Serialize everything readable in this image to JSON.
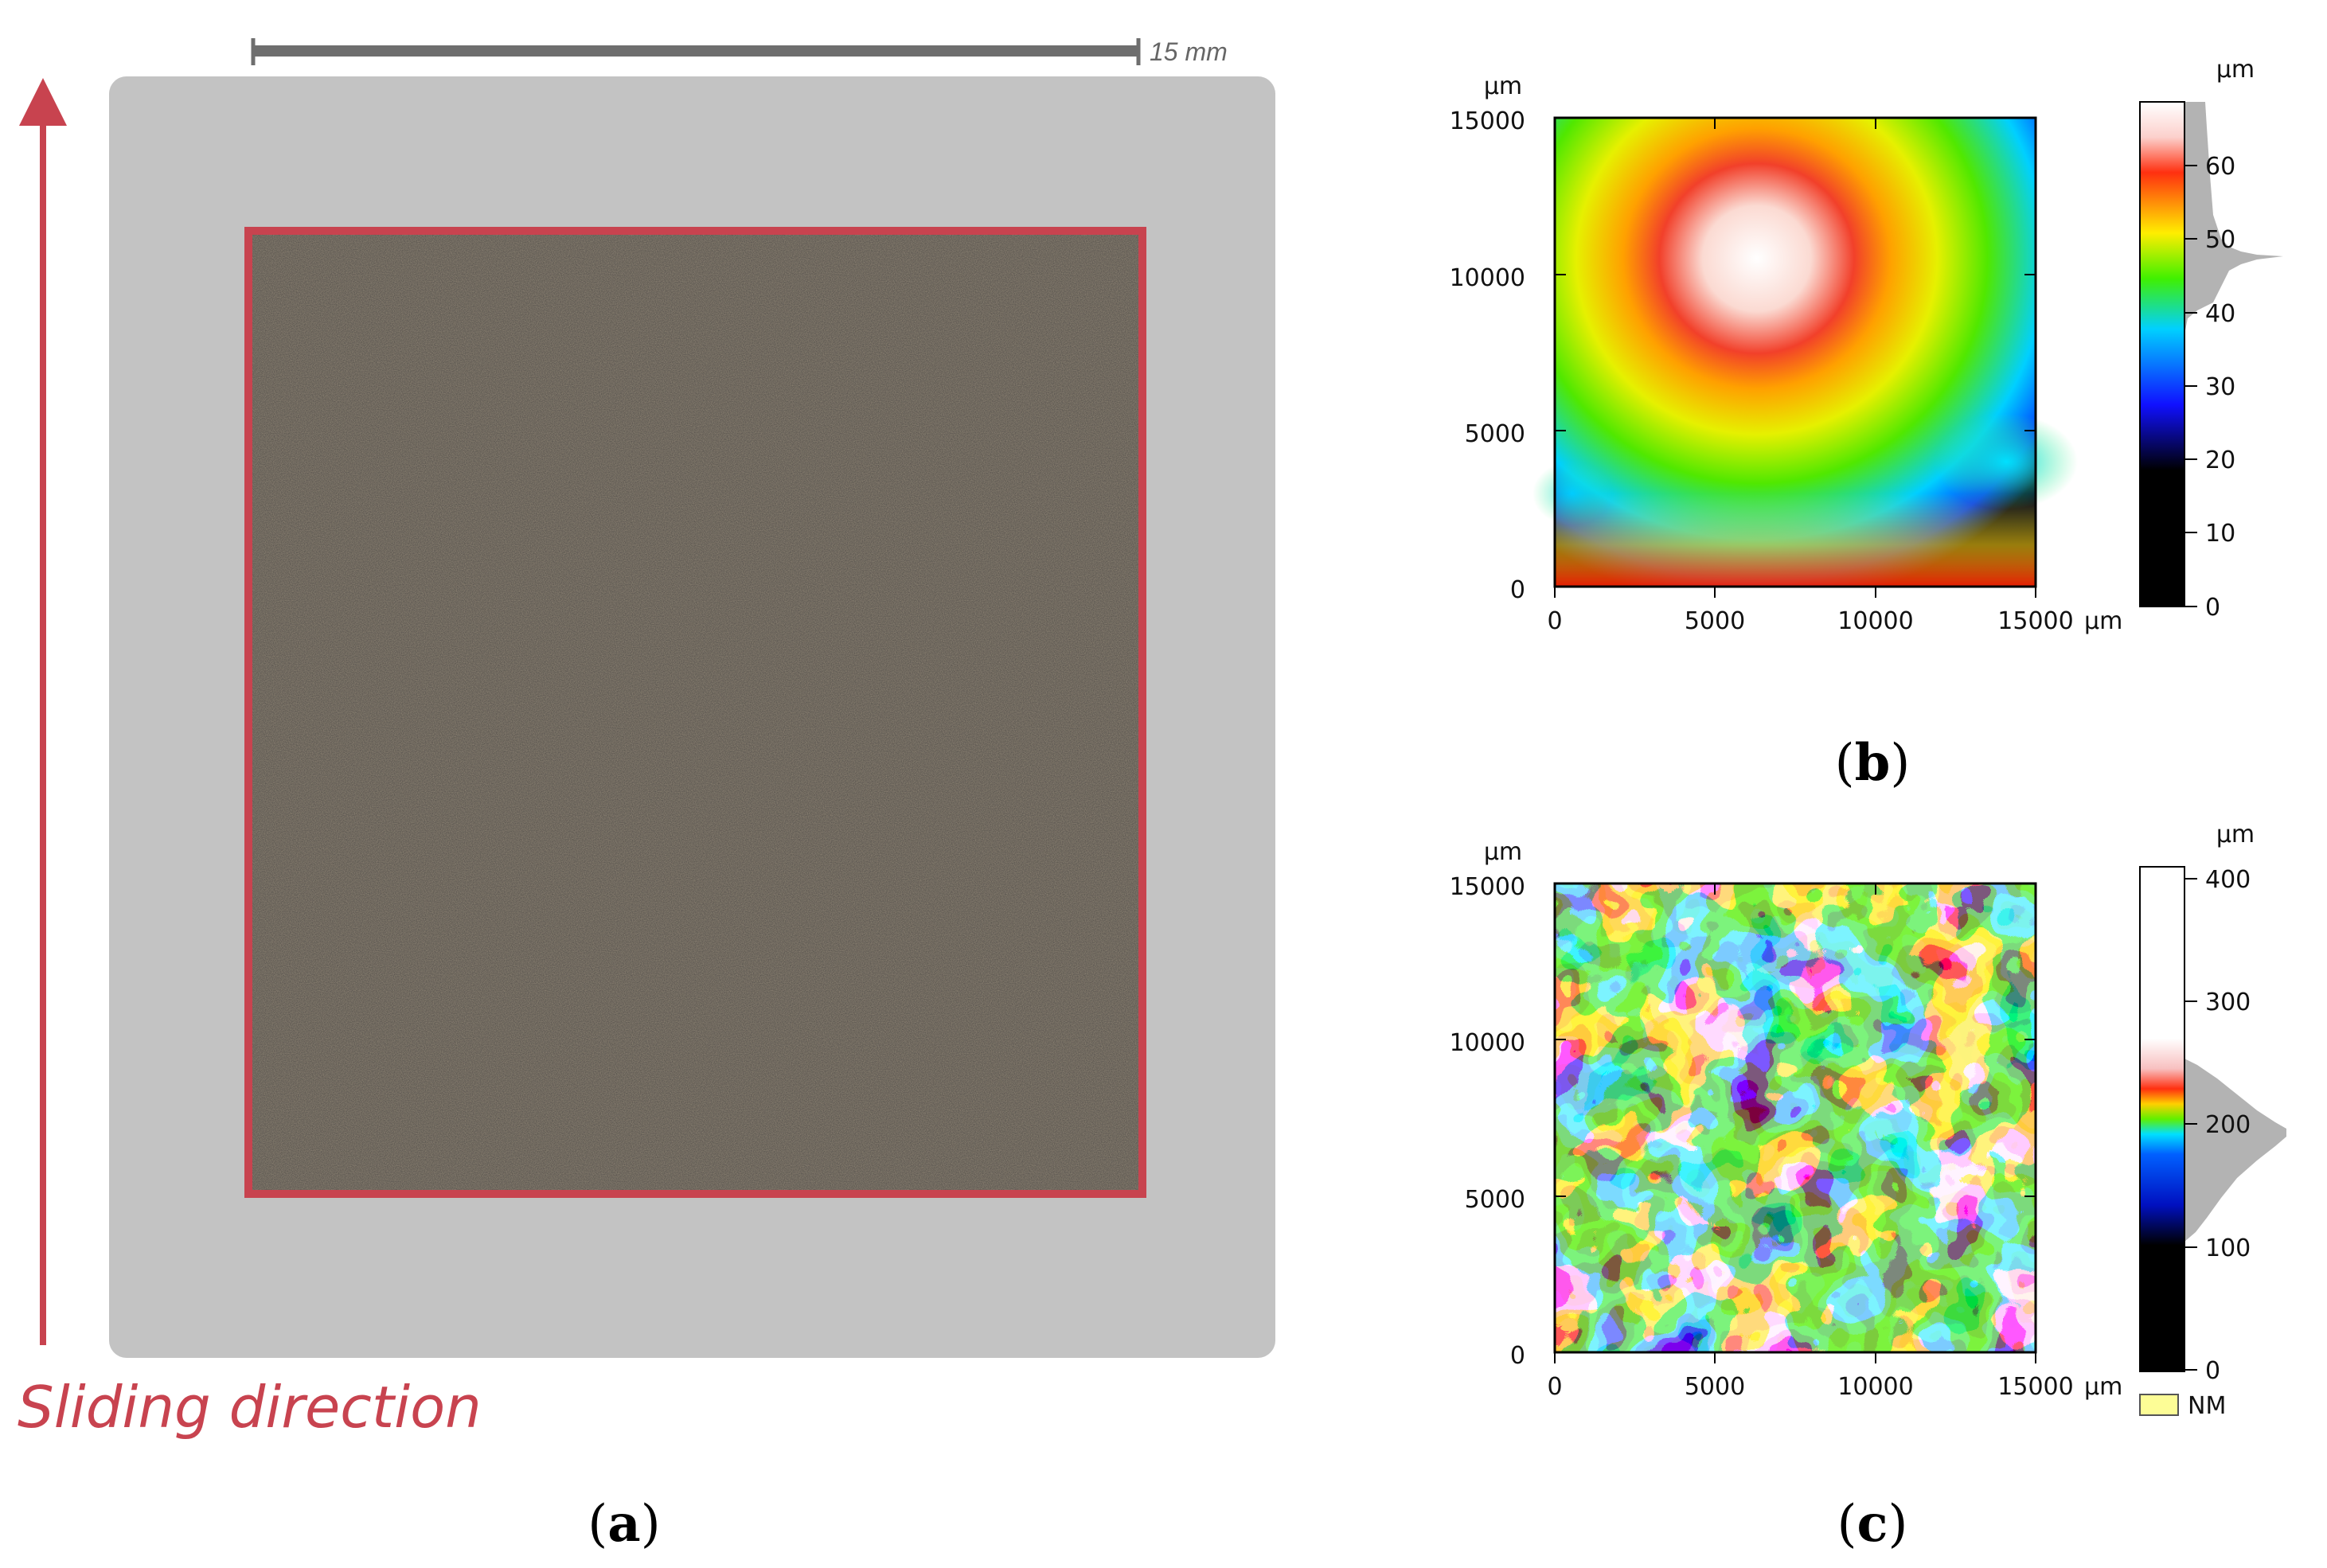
{
  "panel_a": {
    "scale_bar_label": "15 mm",
    "direction_label": "Sliding direction",
    "caption": "a",
    "colors": {
      "frame": "#c8434f",
      "scale_bar": "#6e6e6e",
      "sample": "#5a544e",
      "surround": "#c9c9c9"
    }
  },
  "panel_b": {
    "caption": "b",
    "y_unit": "µm",
    "x_unit": "µm",
    "y_ticks": [
      "15000",
      "10000",
      "5000",
      "0"
    ],
    "x_ticks": [
      "0",
      "5000",
      "10000",
      "15000"
    ],
    "colorbar_unit": "µm",
    "colorbar_ticks": [
      "60",
      "50",
      "40",
      "30",
      "20",
      "10",
      "0"
    ]
  },
  "panel_c": {
    "caption": "c",
    "y_unit": "µm",
    "x_unit": "µm",
    "y_ticks": [
      "15000",
      "10000",
      "5000",
      "0"
    ],
    "x_ticks": [
      "0",
      "5000",
      "10000",
      "15000"
    ],
    "colorbar_unit": "µm",
    "colorbar_ticks": [
      "400",
      "300",
      "200",
      "100",
      "0"
    ],
    "legend_nm_label": "NM",
    "colors": {
      "nm_swatch": "#fdfd96"
    }
  }
}
